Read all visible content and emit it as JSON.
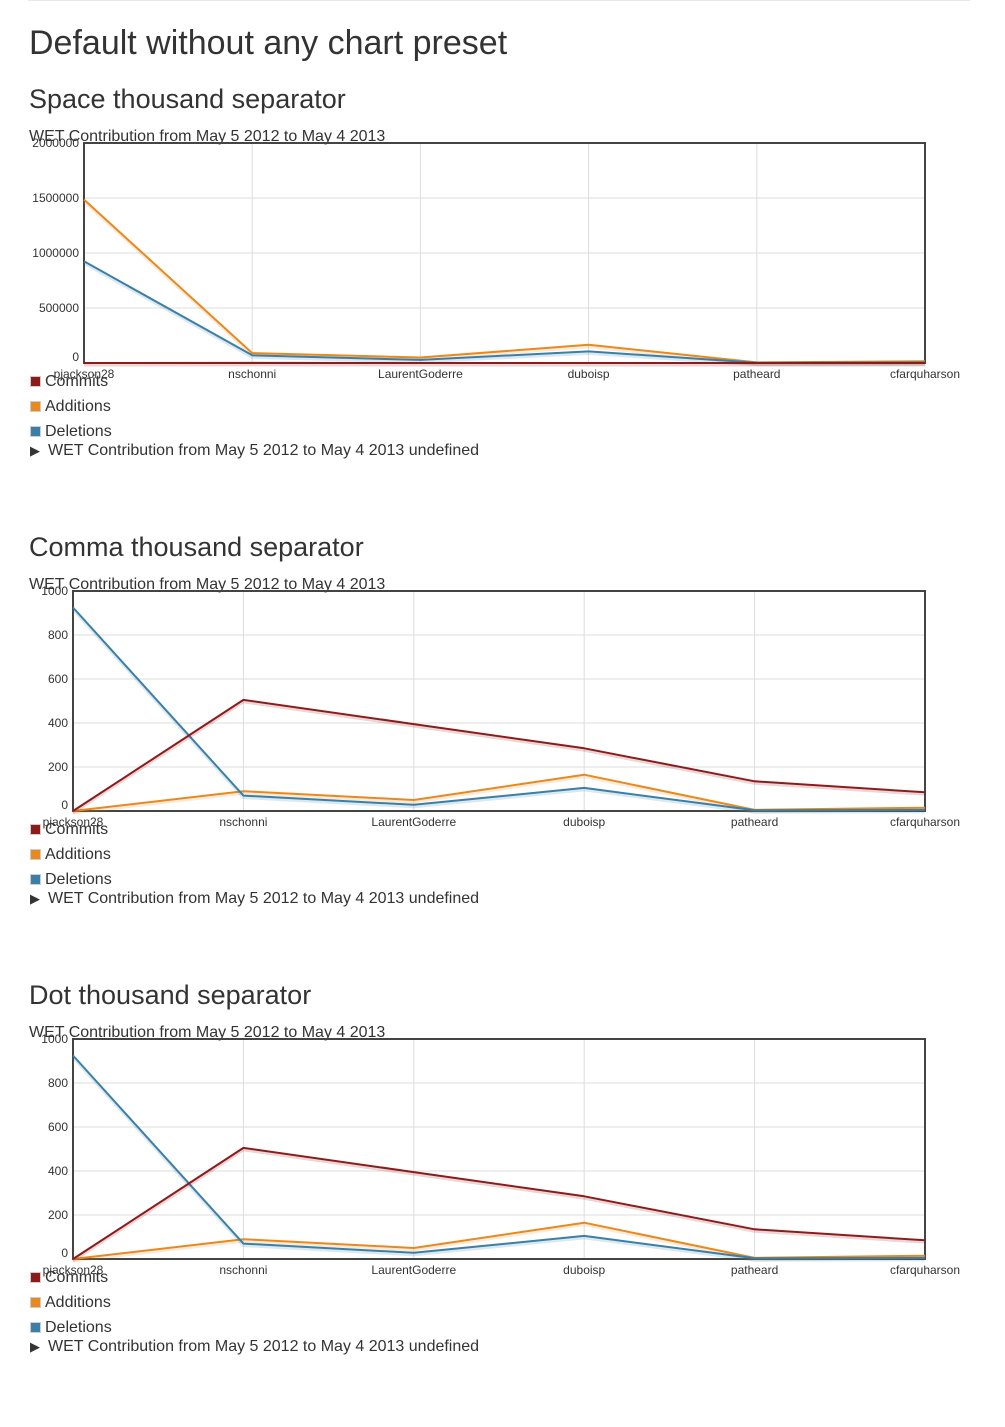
{
  "page": {
    "title": "Default without any chart preset"
  },
  "chart_data": [
    {
      "heading": "Space thousand separator",
      "type": "line",
      "title": "WET Contribution from May 5 2012 to May 4 2013",
      "categories": [
        "pjackson28",
        "nschonni",
        "LaurentGoderre",
        "duboisp",
        "patheard",
        "cfarquharson"
      ],
      "series": [
        {
          "name": "Commits",
          "values": [
            0,
            500,
            400,
            290,
            140,
            90
          ],
          "color": "#8d1b1b"
        },
        {
          "name": "Additions",
          "values": [
            1485000,
            90000,
            50000,
            165000,
            5000,
            15000
          ],
          "color": "#e8891f"
        },
        {
          "name": "Deletions",
          "values": [
            925000,
            70000,
            28000,
            105000,
            3000,
            5000
          ],
          "color": "#3a7fa6"
        }
      ],
      "ylim": [
        0,
        2000000
      ],
      "yticks": [
        "0",
        "500000",
        "1000000",
        "1500000",
        "2000000"
      ],
      "grid": true,
      "details_label": "WET Contribution from May 5 2012 to May 4 2013 undefined"
    },
    {
      "heading": "Comma thousand separator",
      "type": "line",
      "title": "WET Contribution from May 5 2012 to May 4 2013",
      "categories": [
        "pjackson28",
        "nschonni",
        "LaurentGoderre",
        "duboisp",
        "patheard",
        "cfarquharson"
      ],
      "series": [
        {
          "name": "Commits",
          "values": [
            0,
            505,
            395,
            285,
            135,
            85
          ],
          "color": "#8d1b1b"
        },
        {
          "name": "Additions",
          "values": [
            0,
            90,
            50,
            165,
            5,
            15
          ],
          "color": "#e8891f"
        },
        {
          "name": "Deletions",
          "values": [
            925,
            70,
            28,
            105,
            3,
            5
          ],
          "color": "#3a7fa6"
        }
      ],
      "ylim": [
        0,
        1000
      ],
      "yticks": [
        "0",
        "200",
        "400",
        "600",
        "800",
        "1000"
      ],
      "grid": true,
      "details_label": "WET Contribution from May 5 2012 to May 4 2013 undefined"
    },
    {
      "heading": "Dot thousand separator",
      "type": "line",
      "title": "WET Contribution from May 5 2012 to May 4 2013",
      "categories": [
        "pjackson28",
        "nschonni",
        "LaurentGoderre",
        "duboisp",
        "patheard",
        "cfarquharson"
      ],
      "series": [
        {
          "name": "Commits",
          "values": [
            0,
            505,
            395,
            285,
            135,
            85
          ],
          "color": "#8d1b1b"
        },
        {
          "name": "Additions",
          "values": [
            0,
            90,
            50,
            165,
            5,
            15
          ],
          "color": "#e8891f"
        },
        {
          "name": "Deletions",
          "values": [
            925,
            70,
            28,
            105,
            3,
            5
          ],
          "color": "#3a7fa6"
        }
      ],
      "ylim": [
        0,
        1000
      ],
      "yticks": [
        "0",
        "200",
        "400",
        "600",
        "800",
        "1000"
      ],
      "grid": true,
      "details_label": "WET Contribution from May 5 2012 to May 4 2013 undefined"
    }
  ]
}
